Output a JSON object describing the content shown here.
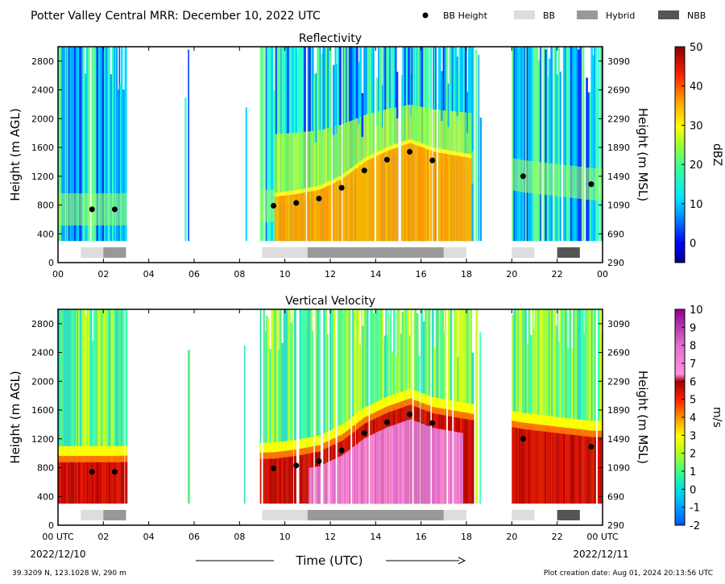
{
  "header": {
    "title": "Potter Valley Central MRR:  December 10, 2022 UTC",
    "legend": [
      {
        "label": "BB Height",
        "kind": "dot",
        "color": "#000000"
      },
      {
        "label": "BB",
        "kind": "box",
        "color": "#dddddd"
      },
      {
        "label": "Hybrid",
        "kind": "box",
        "color": "#999999"
      },
      {
        "label": "NBB",
        "kind": "box",
        "color": "#555555"
      }
    ]
  },
  "footer": {
    "location": "39.3209 N, 123.1028 W, 290 m",
    "creation": "Plot creation date: Aug 01, 2024 20:13:56 UTC",
    "start_date": "2022/12/10",
    "end_date": "2022/12/11",
    "time_label": "Time (UTC)"
  },
  "chart_data": [
    {
      "type": "heatmap",
      "title": "Reflectivity",
      "ylabel": "Height (m AGL)",
      "ylabel_right": "Height (m MSL)",
      "colorbar_label": "dBZ",
      "xlim": [
        0,
        24
      ],
      "ylim": [
        0,
        3000
      ],
      "x_ticks": [
        "00",
        "02",
        "04",
        "06",
        "08",
        "10",
        "12",
        "14",
        "16",
        "18",
        "20",
        "22",
        "00"
      ],
      "y_ticks": [
        "0",
        "400",
        "800",
        "1200",
        "1600",
        "2000",
        "2400",
        "2800"
      ],
      "y_ticks_right": [
        "290",
        "690",
        "1090",
        "1490",
        "1890",
        "2290",
        "2690",
        "3090"
      ],
      "colorbar_range": [
        -5,
        50
      ],
      "colorbar_ticks": [
        "0",
        "10",
        "20",
        "30",
        "40",
        "50"
      ],
      "bb_heights": [
        [
          1.5,
          740
        ],
        [
          2.5,
          740
        ],
        [
          9.5,
          790
        ],
        [
          10.5,
          830
        ],
        [
          11.5,
          890
        ],
        [
          12.5,
          1040
        ],
        [
          13.5,
          1280
        ],
        [
          14.5,
          1430
        ],
        [
          15.5,
          1540
        ],
        [
          16.5,
          1420
        ],
        [
          20.5,
          1200
        ],
        [
          23.5,
          1090
        ]
      ],
      "bb_types": [
        [
          1.0,
          2.0,
          "BB"
        ],
        [
          2.0,
          3.0,
          "Hybrid"
        ],
        [
          9.0,
          11.0,
          "BB"
        ],
        [
          11.0,
          17.0,
          "Hybrid"
        ],
        [
          17.0,
          18.0,
          "BB"
        ],
        [
          20.0,
          21.0,
          "BB"
        ],
        [
          22.0,
          23.0,
          "NBB"
        ]
      ]
    },
    {
      "type": "heatmap",
      "title": "Vertical Velocity",
      "ylabel": "Height (m AGL)",
      "ylabel_right": "Height (m MSL)",
      "colorbar_label": "m/s",
      "xlim": [
        0,
        24
      ],
      "ylim": [
        0,
        3000
      ],
      "x_ticks": [
        "00 UTC",
        "02",
        "04",
        "06",
        "08",
        "10",
        "12",
        "14",
        "16",
        "18",
        "20",
        "22",
        "00 UTC"
      ],
      "y_ticks": [
        "0",
        "400",
        "800",
        "1200",
        "1600",
        "2000",
        "2400",
        "2800"
      ],
      "y_ticks_right": [
        "290",
        "690",
        "1090",
        "1490",
        "1890",
        "2290",
        "2690",
        "3090"
      ],
      "colorbar_range": [
        -2,
        10
      ],
      "colorbar_ticks": [
        "-2",
        "-1",
        "0",
        "1",
        "2",
        "3",
        "4",
        "5",
        "6",
        "7",
        "8",
        "9",
        "10"
      ],
      "bb_heights": [
        [
          1.5,
          740
        ],
        [
          2.5,
          740
        ],
        [
          9.5,
          790
        ],
        [
          10.5,
          830
        ],
        [
          11.5,
          890
        ],
        [
          12.5,
          1040
        ],
        [
          13.5,
          1280
        ],
        [
          14.5,
          1430
        ],
        [
          15.5,
          1540
        ],
        [
          16.5,
          1420
        ],
        [
          20.5,
          1200
        ],
        [
          23.5,
          1090
        ]
      ],
      "bb_types": [
        [
          1.0,
          2.0,
          "BB"
        ],
        [
          2.0,
          3.0,
          "Hybrid"
        ],
        [
          9.0,
          11.0,
          "BB"
        ],
        [
          11.0,
          17.0,
          "Hybrid"
        ],
        [
          17.0,
          18.0,
          "BB"
        ],
        [
          20.0,
          21.0,
          "BB"
        ],
        [
          22.0,
          23.0,
          "NBB"
        ]
      ]
    }
  ]
}
